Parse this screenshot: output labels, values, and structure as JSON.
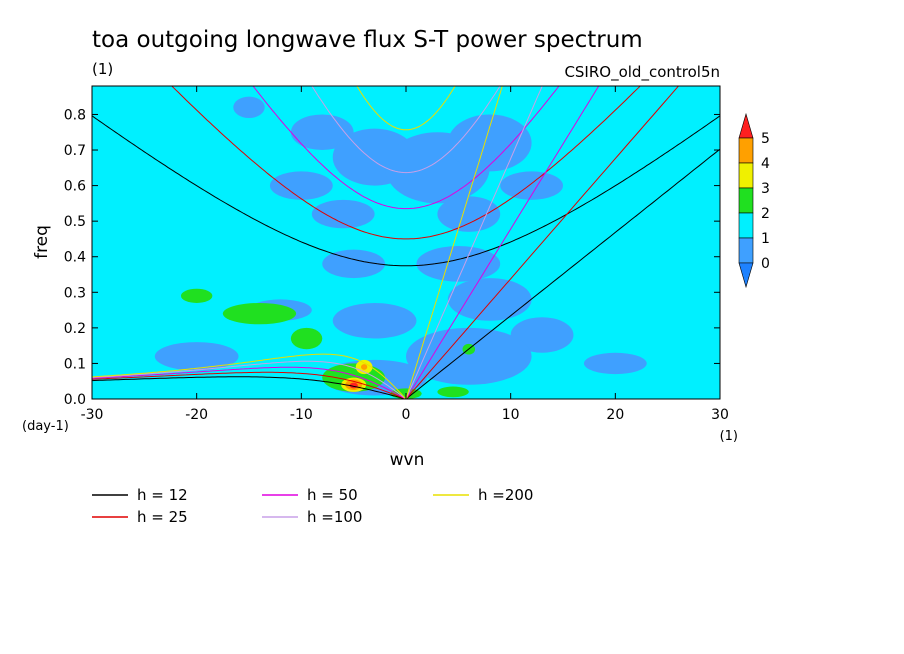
{
  "chart_data": {
    "type": "heatmap",
    "title": "toa outgoing longwave flux S-T power spectrum",
    "subtitle_left": "(1)",
    "subtitle_right": "CSIRO_old_control5n",
    "xlabel": "wvn",
    "ylabel": "freq",
    "x_unit": "(1)",
    "y_unit": "(day-1)",
    "xlim": [
      -30,
      30
    ],
    "ylim": [
      0,
      0.88
    ],
    "x_ticks": [
      -30,
      -20,
      -10,
      0,
      10,
      20,
      30
    ],
    "x_tick_labels": [
      "-30",
      "-20",
      "-10",
      "0",
      "10",
      "20",
      "30"
    ],
    "y_ticks": [
      0,
      0.1,
      0.2,
      0.3,
      0.4,
      0.5,
      0.6,
      0.7,
      0.8
    ],
    "y_tick_labels": [
      "0.0",
      "0.1",
      "0.2",
      "0.3",
      "0.4",
      "0.5",
      "0.6",
      "0.7",
      "0.8"
    ],
    "colorbar": {
      "levels": [
        0,
        1,
        2,
        3,
        4,
        5
      ],
      "labels": [
        "0",
        "1",
        "2",
        "3",
        "4",
        "5"
      ],
      "colors": [
        "#1e82ff",
        "#3fa0ff",
        "#00f0ff",
        "#20e020",
        "#f0f000",
        "#ffa000",
        "#ff2020"
      ]
    },
    "background_level": 1,
    "regions": [
      {
        "level": 0,
        "x": -15,
        "y": 0.82,
        "rx": 1.5,
        "ry": 0.03
      },
      {
        "level": 0,
        "x": -8,
        "y": 0.75,
        "rx": 3,
        "ry": 0.05
      },
      {
        "level": 0,
        "x": -3,
        "y": 0.68,
        "rx": 4,
        "ry": 0.08
      },
      {
        "level": 0,
        "x": 3,
        "y": 0.65,
        "rx": 5,
        "ry": 0.1
      },
      {
        "level": 0,
        "x": 8,
        "y": 0.72,
        "rx": 4,
        "ry": 0.08
      },
      {
        "level": 0,
        "x": -10,
        "y": 0.6,
        "rx": 3,
        "ry": 0.04
      },
      {
        "level": 0,
        "x": -6,
        "y": 0.52,
        "rx": 3,
        "ry": 0.04
      },
      {
        "level": 0,
        "x": 6,
        "y": 0.52,
        "rx": 3,
        "ry": 0.05
      },
      {
        "level": 0,
        "x": 12,
        "y": 0.6,
        "rx": 3,
        "ry": 0.04
      },
      {
        "level": 0,
        "x": -5,
        "y": 0.38,
        "rx": 3,
        "ry": 0.04
      },
      {
        "level": 0,
        "x": 5,
        "y": 0.38,
        "rx": 4,
        "ry": 0.05
      },
      {
        "level": 0,
        "x": 8,
        "y": 0.28,
        "rx": 4,
        "ry": 0.06
      },
      {
        "level": 0,
        "x": 13,
        "y": 0.18,
        "rx": 3,
        "ry": 0.05
      },
      {
        "level": 0,
        "x": 6,
        "y": 0.12,
        "rx": 6,
        "ry": 0.08
      },
      {
        "level": 0,
        "x": -3,
        "y": 0.22,
        "rx": 4,
        "ry": 0.05
      },
      {
        "level": 0,
        "x": -12,
        "y": 0.25,
        "rx": 3,
        "ry": 0.03
      },
      {
        "level": 0,
        "x": -20,
        "y": 0.12,
        "rx": 4,
        "ry": 0.04
      },
      {
        "level": 0,
        "x": -3,
        "y": 0.06,
        "rx": 5,
        "ry": 0.05
      },
      {
        "level": 0,
        "x": 20,
        "y": 0.1,
        "rx": 3,
        "ry": 0.03
      },
      {
        "level": 2,
        "x": -14,
        "y": 0.24,
        "rx": 3.5,
        "ry": 0.03
      },
      {
        "level": 2,
        "x": -20,
        "y": 0.29,
        "rx": 1.5,
        "ry": 0.02
      },
      {
        "level": 2,
        "x": -9.5,
        "y": 0.17,
        "rx": 1.5,
        "ry": 0.03
      },
      {
        "level": 2,
        "x": -5,
        "y": 0.06,
        "rx": 3,
        "ry": 0.04
      },
      {
        "level": 2,
        "x": 0,
        "y": 0.015,
        "rx": 1.5,
        "ry": 0.015
      },
      {
        "level": 2,
        "x": 4.5,
        "y": 0.02,
        "rx": 1.5,
        "ry": 0.015
      },
      {
        "level": 2,
        "x": 6,
        "y": 0.14,
        "rx": 0.6,
        "ry": 0.015
      },
      {
        "level": 3,
        "x": -4,
        "y": 0.09,
        "rx": 0.8,
        "ry": 0.02
      },
      {
        "level": 3,
        "x": -5,
        "y": 0.04,
        "rx": 1.2,
        "ry": 0.02
      },
      {
        "level": 4,
        "x": -5,
        "y": 0.04,
        "rx": 0.8,
        "ry": 0.015
      },
      {
        "level": 4,
        "x": -4,
        "y": 0.09,
        "rx": 0.3,
        "ry": 0.008
      },
      {
        "level": 5,
        "x": -5,
        "y": 0.038,
        "rx": 0.4,
        "ry": 0.008
      }
    ],
    "dispersion_curves": {
      "h_values": [
        12,
        25,
        50,
        100,
        200
      ],
      "colors": [
        "#000000",
        "#e00000",
        "#e000e0",
        "#c8a0e8",
        "#e8e000"
      ]
    },
    "legend": [
      {
        "label": "h = 12",
        "color": "#000000"
      },
      {
        "label": "h = 25",
        "color": "#e00000"
      },
      {
        "label": "h = 50",
        "color": "#e000e0"
      },
      {
        "label": "h =100",
        "color": "#c8a0e8"
      },
      {
        "label": "h =200",
        "color": "#e8e000"
      }
    ]
  }
}
